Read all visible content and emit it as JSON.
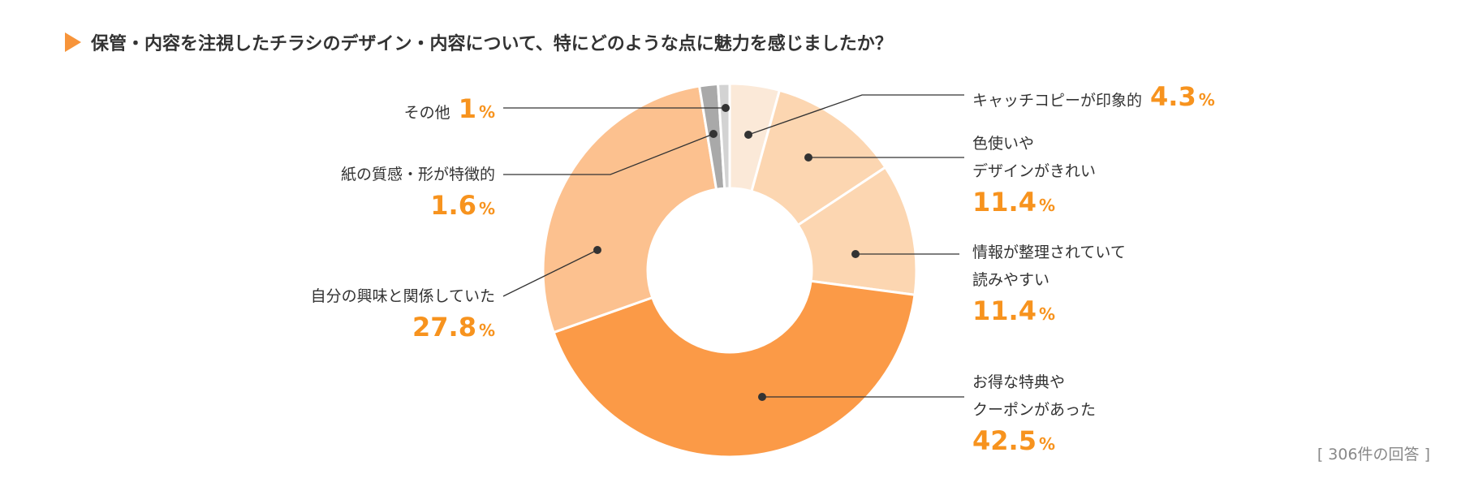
{
  "title": "保管・内容を注視したチラシのデザイン・内容について、特にどのような点に魅力を感じましたか？",
  "note": "[ 306件の回答 ]",
  "chart_data": {
    "type": "pie",
    "donut": true,
    "title": "保管・内容を注視したチラシのデザイン・内容について、特にどのような点に魅力を感じましたか？",
    "unit": "%",
    "slices": [
      {
        "label": "キャッチコピーが印象的",
        "label_lines": [
          "キャッチコピーが印象的"
        ],
        "value": 4.3,
        "display": "4.3",
        "color": "#fbe9d8"
      },
      {
        "label": "色使いやデザインがきれい",
        "label_lines": [
          "色使いや",
          "デザインがきれい"
        ],
        "value": 11.4,
        "display": "11.4",
        "color": "#fcd6b1"
      },
      {
        "label": "情報が整理されていて読みやすい",
        "label_lines": [
          "情報が整理されていて",
          "読みやすい"
        ],
        "value": 11.4,
        "display": "11.4",
        "color": "#fcd6b1"
      },
      {
        "label": "お得な特典やクーポンがあった",
        "label_lines": [
          "お得な特典や",
          "クーポンがあった"
        ],
        "value": 42.5,
        "display": "42.5",
        "color": "#fb9a47"
      },
      {
        "label": "自分の興味と関係していた",
        "label_lines": [
          "自分の興味と関係していた"
        ],
        "value": 27.8,
        "display": "27.8",
        "color": "#fcc18f"
      },
      {
        "label": "紙の質感・形が特徴的",
        "label_lines": [
          "紙の質感・形が特徴的"
        ],
        "value": 1.6,
        "display": "1.6",
        "color": "#a9a9a9"
      },
      {
        "label": "その他",
        "label_lines": [
          "その他"
        ],
        "value": 1,
        "display": "1",
        "color": "#d3d3d3"
      }
    ],
    "value_color": "#f7931e",
    "accent_color": "#f7943a"
  }
}
